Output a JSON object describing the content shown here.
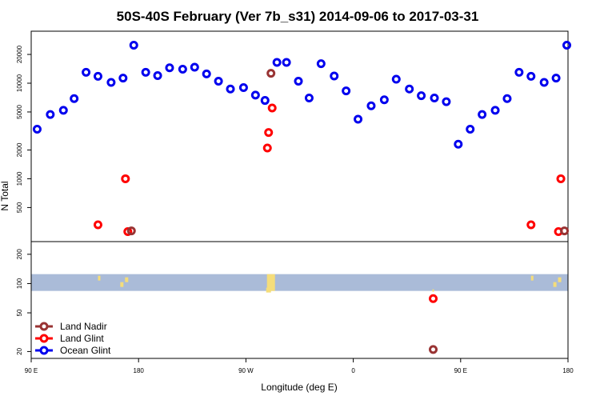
{
  "chart_data": {
    "type": "scatter",
    "title": "50S-40S February (Ver 7b_s31)   2014-09-06 to 2017-03-31",
    "xlabel": "Longitude (deg E)",
    "ylabel": "N Total",
    "x_ticks": [
      {
        "value": 90,
        "label": "90 E"
      },
      {
        "value": 180,
        "label": "180"
      },
      {
        "value": 270,
        "label": "90 W"
      },
      {
        "value": 360,
        "label": "0"
      },
      {
        "value": 450,
        "label": "90 E"
      },
      {
        "value": 540,
        "label": "180"
      }
    ],
    "xlim": [
      90,
      540
    ],
    "scale_y": "log",
    "upper_panel": {
      "ylim": [
        220,
        35000
      ],
      "y_ticks": [
        500,
        1000,
        2000,
        5000,
        10000,
        20000
      ],
      "series": [
        {
          "name": "Ocean Glint",
          "color": "#0000ee",
          "points": [
            [
              95,
              3300
            ],
            [
              106,
              4700
            ],
            [
              117,
              5200
            ],
            [
              126,
              6900
            ],
            [
              136,
              13000
            ],
            [
              146,
              11800
            ],
            [
              157,
              10200
            ],
            [
              167,
              11300
            ],
            [
              176,
              25000
            ],
            [
              186,
              13000
            ],
            [
              196,
              12000
            ],
            [
              206,
              14500
            ],
            [
              217,
              14000
            ],
            [
              227,
              14700
            ],
            [
              237,
              12500
            ],
            [
              247,
              10500
            ],
            [
              257,
              8700
            ],
            [
              268,
              9000
            ],
            [
              278,
              7500
            ],
            [
              286,
              6600
            ],
            [
              296,
              16500
            ],
            [
              304,
              16500
            ],
            [
              314,
              10500
            ],
            [
              323,
              7000
            ],
            [
              333,
              16000
            ],
            [
              344,
              11900
            ],
            [
              354,
              8300
            ],
            [
              364,
              4200
            ],
            [
              375,
              5800
            ],
            [
              386,
              6700
            ],
            [
              396,
              11000
            ],
            [
              407,
              8700
            ],
            [
              417,
              7400
            ],
            [
              428,
              7000
            ],
            [
              438,
              6400
            ],
            [
              448,
              2300
            ],
            [
              458,
              3300
            ],
            [
              468,
              4700
            ],
            [
              479,
              5200
            ],
            [
              489,
              6900
            ],
            [
              499,
              13000
            ],
            [
              509,
              11800
            ],
            [
              520,
              10200
            ],
            [
              530,
              11300
            ],
            [
              539,
              25000
            ]
          ]
        },
        {
          "name": "Land Glint",
          "color": "#ff0000",
          "points": [
            [
              146,
              330
            ],
            [
              169,
              1000
            ],
            [
              171,
              280
            ],
            [
              288,
              2100
            ],
            [
              289,
              3050
            ],
            [
              292,
              5500
            ],
            [
              509,
              330
            ],
            [
              532,
              280
            ],
            [
              534,
              1000
            ]
          ]
        },
        {
          "name": "Land Nadir",
          "color": "#993333",
          "points": [
            [
              174,
              285
            ],
            [
              291,
              12700
            ],
            [
              537,
              285
            ]
          ]
        }
      ]
    },
    "lower_panel": {
      "ylim": [
        17,
        270
      ],
      "y_ticks": [
        20,
        50,
        100,
        200
      ],
      "band_range": [
        84,
        125
      ],
      "band_color": "#aabbd8",
      "land_color": "#f5dd7a",
      "series": [
        {
          "name": "Land Glint",
          "color": "#ff0000",
          "points": [
            [
              427,
              70
            ]
          ]
        },
        {
          "name": "Land Nadir",
          "color": "#993333",
          "points": [
            [
              427,
              21
            ]
          ]
        }
      ]
    },
    "legend": {
      "position": "bottom-left",
      "entries": [
        {
          "label": "Land Nadir",
          "color": "#993333"
        },
        {
          "label": "Land Glint",
          "color": "#ff0000"
        },
        {
          "label": "Ocean Glint",
          "color": "#0000ee"
        }
      ]
    }
  }
}
